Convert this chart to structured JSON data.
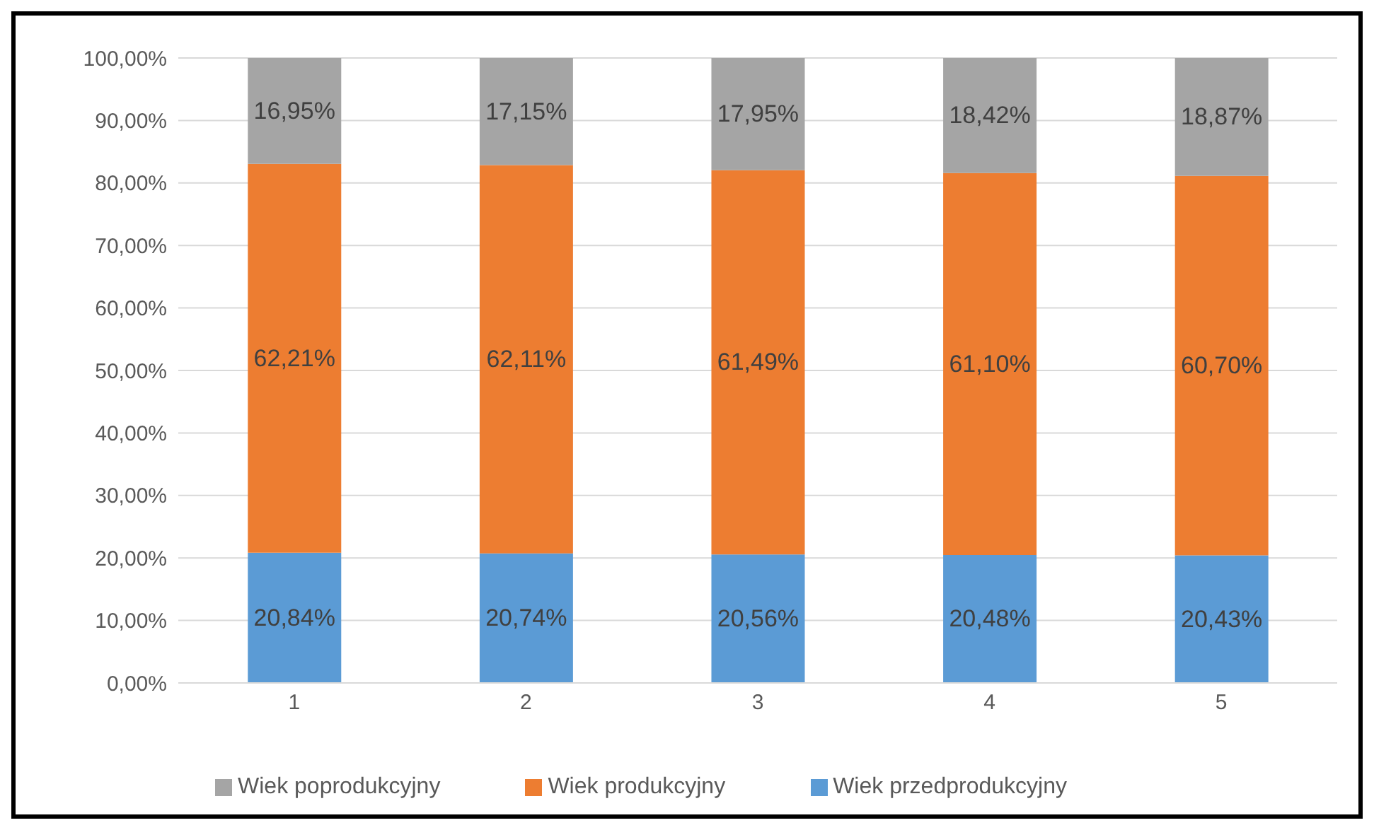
{
  "chart_data": {
    "type": "bar",
    "stacked": true,
    "categories": [
      "1",
      "2",
      "3",
      "4",
      "5"
    ],
    "series": [
      {
        "name": "Wiek przedprodukcyjny",
        "color": "#5b9bd5",
        "values": [
          20.84,
          20.74,
          20.56,
          20.48,
          20.43
        ],
        "value_labels": [
          "20,84%",
          "20,74%",
          "20,56%",
          "20,48%",
          "20,43%"
        ]
      },
      {
        "name": "Wiek produkcyjny",
        "color": "#ed7d31",
        "values": [
          62.21,
          62.11,
          61.49,
          61.1,
          60.7
        ],
        "value_labels": [
          "62,21%",
          "62,11%",
          "61,49%",
          "61,10%",
          "60,70%"
        ]
      },
      {
        "name": "Wiek poprodukcyjny",
        "color": "#a5a5a5",
        "values": [
          16.95,
          17.15,
          17.95,
          18.42,
          18.87
        ],
        "value_labels": [
          "16,95%",
          "17,15%",
          "17,95%",
          "18,42%",
          "18,87%"
        ]
      }
    ],
    "ylim": [
      0,
      100
    ],
    "yticks": [
      {
        "value": 0,
        "label": "0,00%"
      },
      {
        "value": 10,
        "label": "10,00%"
      },
      {
        "value": 20,
        "label": "20,00%"
      },
      {
        "value": 30,
        "label": "30,00%"
      },
      {
        "value": 40,
        "label": "40,00%"
      },
      {
        "value": 50,
        "label": "50,00%"
      },
      {
        "value": 60,
        "label": "60,00%"
      },
      {
        "value": 70,
        "label": "70,00%"
      },
      {
        "value": 80,
        "label": "80,00%"
      },
      {
        "value": 90,
        "label": "90,00%"
      },
      {
        "value": 100,
        "label": "100,00%"
      }
    ],
    "grid": "y",
    "legend": "bottom"
  }
}
